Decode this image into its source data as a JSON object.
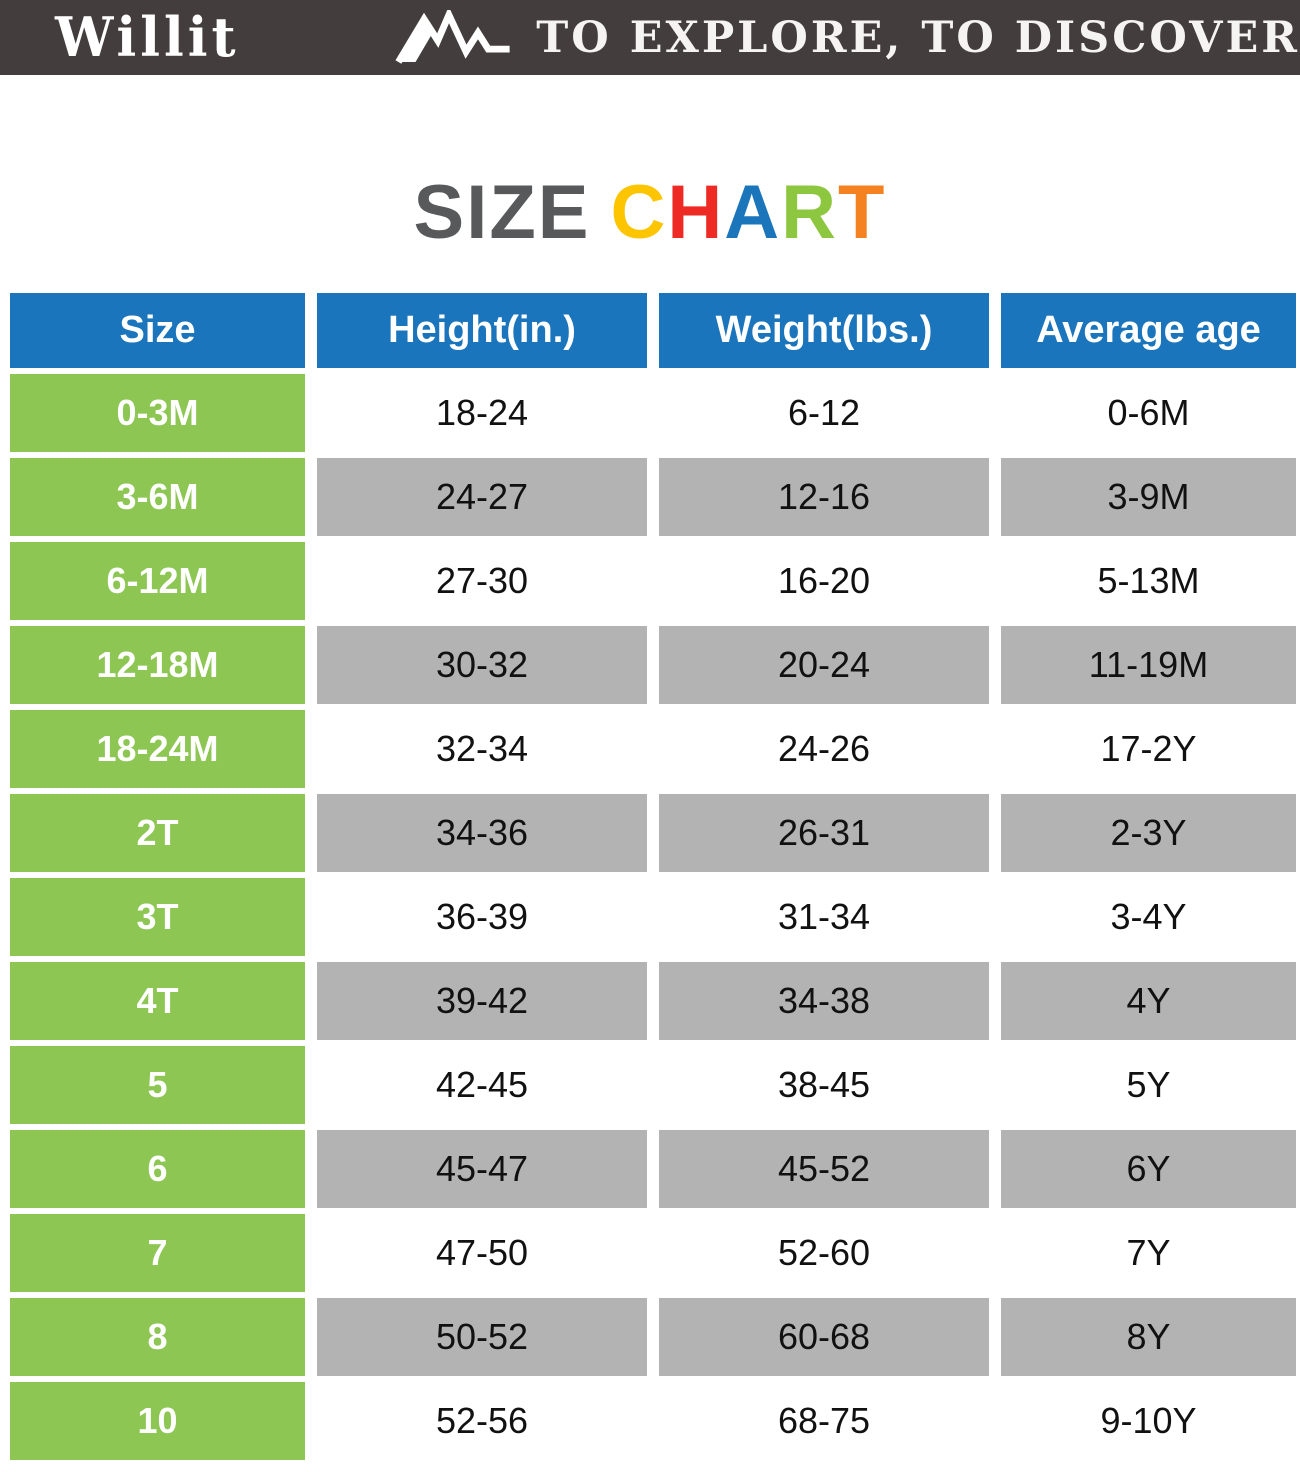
{
  "topbar": {
    "brand": "Willit",
    "tagline": "TO EXPLORE, TO DISCOVER",
    "mountain_icon": "mountain-icon"
  },
  "title": {
    "size_word": "SIZE",
    "chart_letters": [
      {
        "char": "C",
        "color": "#FDC500"
      },
      {
        "char": "H",
        "color": "#EE2A24"
      },
      {
        "char": "A",
        "color": "#1B75BB"
      },
      {
        "char": "R",
        "color": "#8DC63F"
      },
      {
        "char": "T",
        "color": "#F58220"
      }
    ]
  },
  "table": {
    "columns": [
      "Size",
      "Height(in.)",
      "Weight(lbs.)",
      "Average age"
    ],
    "rows": [
      {
        "size": "0-3M",
        "height": "18-24",
        "weight": "6-12",
        "age": "0-6M"
      },
      {
        "size": "3-6M",
        "height": "24-27",
        "weight": "12-16",
        "age": "3-9M"
      },
      {
        "size": "6-12M",
        "height": "27-30",
        "weight": "16-20",
        "age": "5-13M"
      },
      {
        "size": "12-18M",
        "height": "30-32",
        "weight": "20-24",
        "age": "11-19M"
      },
      {
        "size": "18-24M",
        "height": "32-34",
        "weight": "24-26",
        "age": "17-2Y"
      },
      {
        "size": "2T",
        "height": "34-36",
        "weight": "26-31",
        "age": "2-3Y"
      },
      {
        "size": "3T",
        "height": "36-39",
        "weight": "31-34",
        "age": "3-4Y"
      },
      {
        "size": "4T",
        "height": "39-42",
        "weight": "34-38",
        "age": "4Y"
      },
      {
        "size": "5",
        "height": "42-45",
        "weight": "38-45",
        "age": "5Y"
      },
      {
        "size": "6",
        "height": "45-47",
        "weight": "45-52",
        "age": "6Y"
      },
      {
        "size": "7",
        "height": "47-50",
        "weight": "52-60",
        "age": "7Y"
      },
      {
        "size": "8",
        "height": "50-52",
        "weight": "60-68",
        "age": "8Y"
      },
      {
        "size": "10",
        "height": "52-56",
        "weight": "68-75",
        "age": "9-10Y"
      }
    ]
  },
  "colors": {
    "topbar_bg": "#433E3D",
    "header_blue": "#1B75BC",
    "size_green": "#8DC653",
    "row_gray": "#B3B3B3",
    "title_gray": "#58595B"
  }
}
